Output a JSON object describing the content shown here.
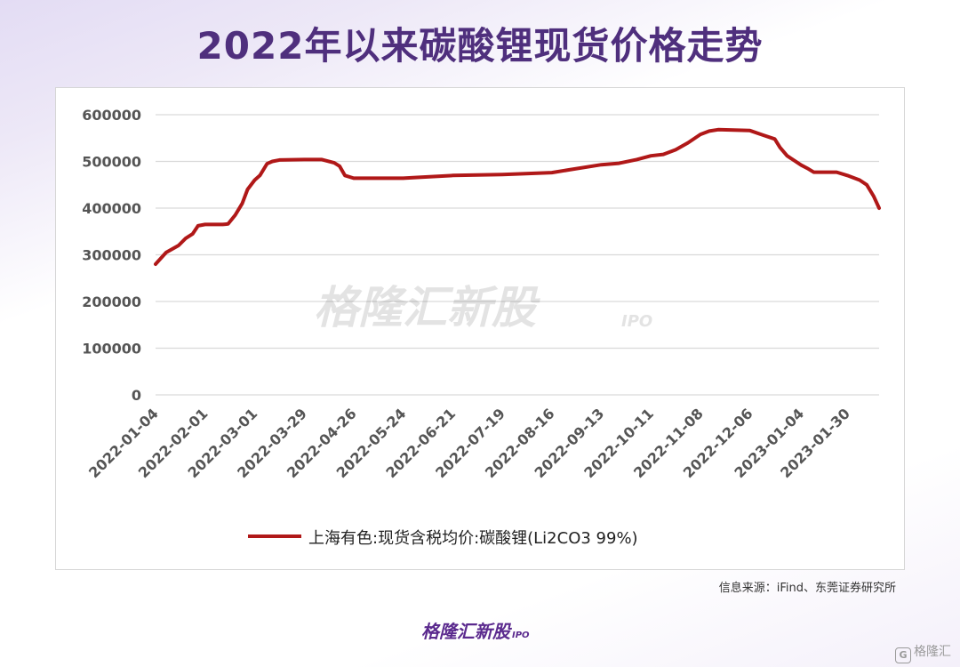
{
  "chart_data": {
    "type": "line",
    "title": "2022年以来碳酸锂现货价格走势",
    "xlabel": "",
    "ylabel": "",
    "ylim": [
      0,
      600000
    ],
    "yticks": [
      0,
      100000,
      200000,
      300000,
      400000,
      500000,
      600000
    ],
    "ytick_labels": [
      "0",
      "100000",
      "200000",
      "300000",
      "400000",
      "500000",
      "600000"
    ],
    "xticks": [
      "2022-01-04",
      "2022-02-01",
      "2022-03-01",
      "2022-03-29",
      "2022-04-26",
      "2022-05-24",
      "2022-06-21",
      "2022-07-19",
      "2022-08-16",
      "2022-09-13",
      "2022-10-11",
      "2022-11-08",
      "2022-12-06",
      "2023-01-04",
      "2023-01-30"
    ],
    "grid": true,
    "legend_position": "bottom",
    "series": [
      {
        "name": "上海有色:现货含税均价:碳酸锂(Li2CO3 99%)",
        "color": "#b01818",
        "points": [
          [
            "2022-01-04",
            280000
          ],
          [
            "2022-01-10",
            305000
          ],
          [
            "2022-01-17",
            320000
          ],
          [
            "2022-01-21",
            335000
          ],
          [
            "2022-01-25",
            345000
          ],
          [
            "2022-01-28",
            362000
          ],
          [
            "2022-02-01",
            365000
          ],
          [
            "2022-02-11",
            365000
          ],
          [
            "2022-02-14",
            366000
          ],
          [
            "2022-02-18",
            385000
          ],
          [
            "2022-02-22",
            410000
          ],
          [
            "2022-02-25",
            440000
          ],
          [
            "2022-03-01",
            460000
          ],
          [
            "2022-03-04",
            470000
          ],
          [
            "2022-03-08",
            495000
          ],
          [
            "2022-03-11",
            500000
          ],
          [
            "2022-03-15",
            503000
          ],
          [
            "2022-03-29",
            504000
          ],
          [
            "2022-04-08",
            504000
          ],
          [
            "2022-04-15",
            497000
          ],
          [
            "2022-04-18",
            490000
          ],
          [
            "2022-04-21",
            470000
          ],
          [
            "2022-04-26",
            464000
          ],
          [
            "2022-05-24",
            464000
          ],
          [
            "2022-06-02",
            466000
          ],
          [
            "2022-06-21",
            470000
          ],
          [
            "2022-07-19",
            472000
          ],
          [
            "2022-08-16",
            476000
          ],
          [
            "2022-08-26",
            482000
          ],
          [
            "2022-09-13",
            493000
          ],
          [
            "2022-09-23",
            496000
          ],
          [
            "2022-10-03",
            504000
          ],
          [
            "2022-10-11",
            512000
          ],
          [
            "2022-10-18",
            515000
          ],
          [
            "2022-10-25",
            525000
          ],
          [
            "2022-11-01",
            540000
          ],
          [
            "2022-11-08",
            558000
          ],
          [
            "2022-11-13",
            565000
          ],
          [
            "2022-11-18",
            568000
          ],
          [
            "2022-12-06",
            566000
          ],
          [
            "2022-12-13",
            557000
          ],
          [
            "2022-12-20",
            548000
          ],
          [
            "2022-12-23",
            530000
          ],
          [
            "2022-12-27",
            512000
          ],
          [
            "2023-01-04",
            492000
          ],
          [
            "2023-01-08",
            484000
          ],
          [
            "2023-01-11",
            477000
          ],
          [
            "2023-01-24",
            477000
          ],
          [
            "2023-01-30",
            470000
          ],
          [
            "2023-02-06",
            460000
          ],
          [
            "2023-02-10",
            450000
          ],
          [
            "2023-02-14",
            425000
          ],
          [
            "2023-02-17",
            400000
          ]
        ]
      }
    ]
  },
  "watermark": {
    "brand": "格隆汇新股",
    "suffix": "IPO"
  },
  "source_note": "信息来源：iFind、东莞证券研究所",
  "footer": {
    "brand": "格隆汇新股",
    "suffix": "IPO"
  },
  "corner_mark": {
    "icon": "G",
    "text": "格隆汇"
  }
}
